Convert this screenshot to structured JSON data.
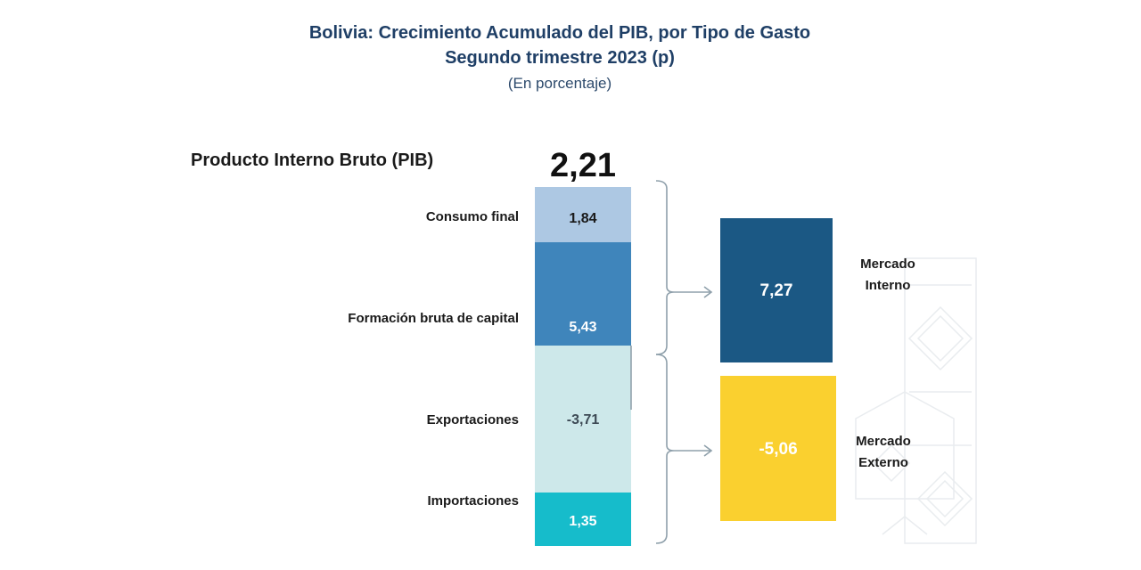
{
  "header": {
    "title": "Bolivia: Crecimiento Acumulado del PIB, por Tipo de Gasto",
    "subtitle": "Segundo trimestre 2023 (p)",
    "unit": "(En porcentaje)"
  },
  "chart_data": {
    "type": "bar",
    "title": "Bolivia: Crecimiento Acumulado del PIB, por Tipo de Gasto",
    "subtitle": "Segundo trimestre 2023 (p)",
    "unit": "(En porcentaje)",
    "total": {
      "label": "Producto Interno Bruto (PIB)",
      "value": 2.21,
      "display": "2,21"
    },
    "components": [
      {
        "label": "Consumo final",
        "value": 1.84,
        "display": "1,84",
        "color": "#adc8e3"
      },
      {
        "label": "Formación bruta de capital",
        "value": 5.43,
        "display": "5,43",
        "color": "#3f85bb"
      },
      {
        "label": "Exportaciones",
        "value": -3.71,
        "display": "-3,71",
        "color": "#cde8ea"
      },
      {
        "label": "Importaciones",
        "value": 1.35,
        "display": "1,35",
        "color": "#16bccb"
      }
    ],
    "markets": [
      {
        "label_line1": "Mercado",
        "label_line2": "Interno",
        "value": 7.27,
        "display": "7,27",
        "color": "#1b5884"
      },
      {
        "label_line1": "Mercado",
        "label_line2": "Externo",
        "value": -5.06,
        "display": "-5,06",
        "color": "#fad02f"
      }
    ]
  }
}
